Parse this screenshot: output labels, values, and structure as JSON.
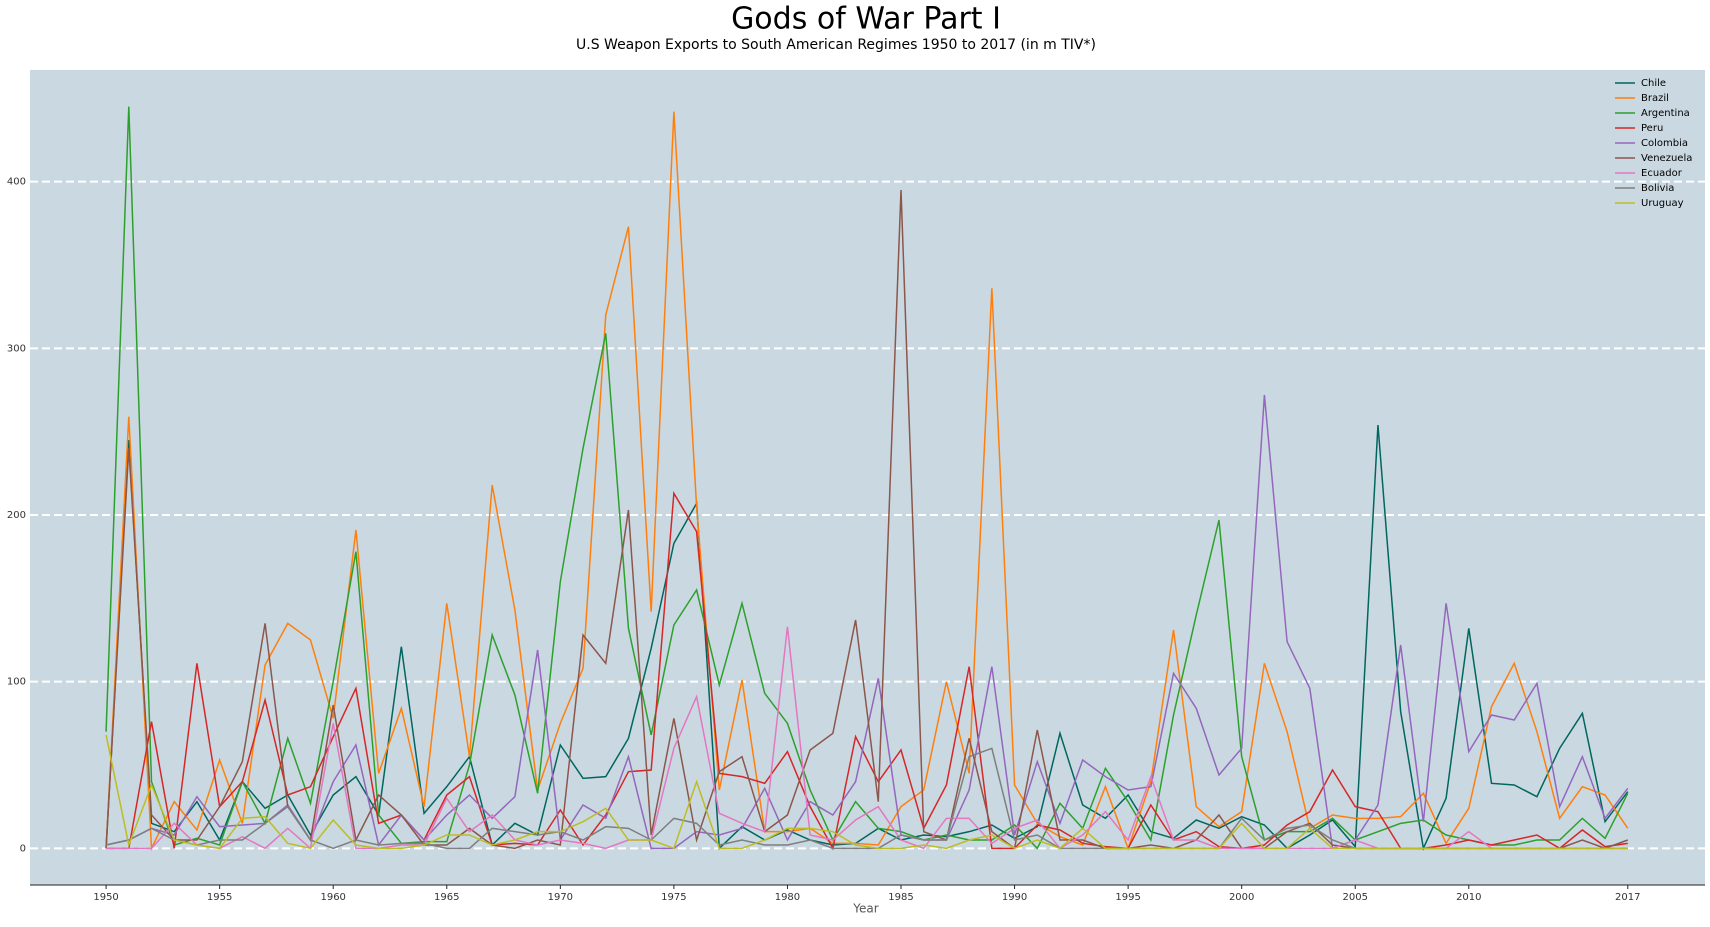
{
  "chart_data": {
    "type": "line",
    "title": "Gods of War Part I",
    "subtitle": "U.S Weapon Exports to South American Regimes 1950 to 2017 (in m TIV*)",
    "x_label": "Year",
    "x": [
      1950,
      1951,
      1952,
      1953,
      1954,
      1955,
      1956,
      1957,
      1958,
      1959,
      1960,
      1961,
      1962,
      1963,
      1964,
      1965,
      1966,
      1967,
      1968,
      1969,
      1970,
      1971,
      1972,
      1973,
      1974,
      1975,
      1976,
      1977,
      1978,
      1979,
      1980,
      1981,
      1982,
      1983,
      1984,
      1985,
      1986,
      1987,
      1988,
      1989,
      1990,
      1991,
      1992,
      1993,
      1994,
      1995,
      1996,
      1997,
      1998,
      1999,
      2000,
      2001,
      2002,
      2003,
      2004,
      2005,
      2006,
      2007,
      2008,
      2009,
      2010,
      2011,
      2012,
      2013,
      2014,
      2015,
      2016,
      2017
    ],
    "xlim": [
      1946.65,
      2020.4
    ],
    "xticks": [
      1950,
      1955,
      1960,
      1965,
      1970,
      1975,
      1980,
      1985,
      1990,
      1995,
      2000,
      2005,
      2010,
      2017
    ],
    "ylim": [
      -22,
      467
    ],
    "yticks": [
      0,
      100,
      200,
      300,
      400
    ],
    "grid": true,
    "legend": "upper right",
    "series": [
      {
        "name": "Chile",
        "color": "#00665e",
        "values": [
          0,
          245,
          15,
          10,
          28,
          5,
          40,
          24,
          32,
          8,
          32,
          43,
          20,
          121,
          21,
          37,
          55,
          2,
          15,
          8,
          62,
          42,
          43,
          66,
          120,
          183,
          207,
          0,
          13,
          5,
          11,
          5,
          2,
          3,
          12,
          5,
          8,
          7,
          10,
          14,
          6,
          13,
          69,
          26,
          18,
          32,
          10,
          6,
          17,
          12,
          19,
          14,
          0,
          8,
          17,
          1,
          254,
          82,
          0,
          30,
          132,
          39,
          38,
          31,
          60,
          81,
          16,
          34
        ]
      },
      {
        "name": "Brazil",
        "color": "#ff7f0e",
        "values": [
          0,
          259,
          0,
          28,
          11,
          53,
          15,
          110,
          135,
          125,
          78,
          191,
          45,
          84,
          25,
          147,
          55,
          218,
          143,
          35,
          75,
          108,
          320,
          373,
          142,
          442,
          205,
          35,
          101,
          10,
          10,
          12,
          3,
          3,
          2,
          25,
          35,
          100,
          45,
          336,
          38,
          15,
          7,
          2,
          37,
          0,
          40,
          131,
          25,
          13,
          22,
          111,
          70,
          12,
          20,
          18,
          18,
          19,
          33,
          3,
          24,
          85,
          111,
          70,
          18,
          37,
          32,
          12
        ]
      },
      {
        "name": "Argentina",
        "color": "#2ca02c",
        "values": [
          70,
          445,
          40,
          2,
          6,
          2,
          40,
          15,
          66,
          27,
          100,
          178,
          20,
          3,
          4,
          4,
          50,
          128,
          92,
          33,
          160,
          240,
          309,
          132,
          68,
          134,
          155,
          98,
          147,
          93,
          75,
          35,
          5,
          28,
          12,
          10,
          5,
          8,
          5,
          5,
          14,
          0,
          27,
          12,
          48,
          28,
          5,
          80,
          140,
          197,
          55,
          5,
          10,
          10,
          18,
          5,
          10,
          15,
          17,
          8,
          5,
          2,
          2,
          5,
          5,
          18,
          6,
          33
        ]
      },
      {
        "name": "Peru",
        "color": "#d62728",
        "values": [
          0,
          0,
          76,
          0,
          111,
          25,
          40,
          89,
          32,
          37,
          67,
          96,
          15,
          20,
          5,
          32,
          43,
          2,
          3,
          2,
          23,
          2,
          20,
          46,
          47,
          213,
          190,
          45,
          43,
          39,
          58,
          25,
          0,
          67,
          40,
          59,
          12,
          38,
          109,
          0,
          0,
          14,
          11,
          3,
          1,
          0,
          26,
          5,
          10,
          1,
          0,
          2,
          14,
          22,
          47,
          25,
          22,
          0,
          0,
          2,
          5,
          2,
          5,
          8,
          0,
          11,
          1,
          3
        ]
      },
      {
        "name": "Colombia",
        "color": "#9467bd",
        "values": [
          2,
          5,
          12,
          8,
          31,
          13,
          14,
          15,
          26,
          5,
          40,
          62,
          2,
          20,
          5,
          20,
          32,
          18,
          31,
          119,
          5,
          26,
          18,
          55,
          0,
          0,
          10,
          8,
          12,
          36,
          5,
          28,
          20,
          40,
          102,
          8,
          5,
          5,
          35,
          109,
          8,
          52,
          15,
          53,
          43,
          35,
          37,
          105,
          84,
          44,
          60,
          272,
          124,
          96,
          0,
          5,
          26,
          122,
          16,
          147,
          58,
          80,
          77,
          99,
          25,
          55,
          18,
          36
        ]
      },
      {
        "name": "Venezuela",
        "color": "#8c564b",
        "values": [
          0,
          240,
          20,
          5,
          5,
          25,
          52,
          135,
          25,
          5,
          86,
          5,
          32,
          20,
          2,
          2,
          12,
          2,
          0,
          5,
          2,
          128,
          111,
          203,
          8,
          78,
          5,
          46,
          55,
          10,
          20,
          59,
          69,
          137,
          28,
          395,
          10,
          5,
          66,
          10,
          0,
          71,
          5,
          5,
          0,
          0,
          2,
          0,
          5,
          20,
          0,
          0,
          10,
          15,
          2,
          0,
          0,
          0,
          0,
          0,
          0,
          0,
          0,
          0,
          0,
          5,
          0,
          5
        ]
      },
      {
        "name": "Ecuador",
        "color": "#e377c2",
        "values": [
          0,
          0,
          0,
          15,
          2,
          0,
          7,
          0,
          12,
          0,
          75,
          0,
          0,
          2,
          2,
          30,
          10,
          20,
          5,
          2,
          5,
          3,
          0,
          5,
          5,
          60,
          91,
          21,
          15,
          10,
          133,
          8,
          5,
          17,
          25,
          5,
          0,
          18,
          18,
          3,
          12,
          17,
          0,
          8,
          22,
          5,
          43,
          5,
          5,
          0,
          0,
          0,
          0,
          0,
          0,
          5,
          0,
          0,
          0,
          0,
          10,
          0,
          0,
          0,
          0,
          0,
          0,
          0
        ]
      },
      {
        "name": "Bolivia",
        "color": "#7f7f7f",
        "values": [
          2,
          5,
          12,
          5,
          2,
          5,
          5,
          15,
          25,
          5,
          0,
          5,
          2,
          3,
          3,
          0,
          0,
          12,
          10,
          8,
          10,
          5,
          13,
          12,
          5,
          18,
          15,
          2,
          5,
          2,
          2,
          5,
          0,
          0,
          0,
          8,
          5,
          5,
          55,
          60,
          5,
          8,
          0,
          0,
          0,
          0,
          0,
          0,
          0,
          0,
          18,
          5,
          12,
          14,
          5,
          0,
          0,
          0,
          0,
          0,
          0,
          0,
          0,
          0,
          0,
          0,
          0,
          0
        ]
      },
      {
        "name": "Uruguay",
        "color": "#bcbd22",
        "values": [
          68,
          2,
          38,
          5,
          2,
          0,
          18,
          19,
          3,
          0,
          17,
          2,
          0,
          0,
          2,
          8,
          8,
          2,
          5,
          10,
          10,
          16,
          24,
          5,
          5,
          0,
          40,
          0,
          0,
          5,
          12,
          12,
          10,
          2,
          0,
          0,
          2,
          0,
          5,
          8,
          0,
          5,
          0,
          12,
          0,
          0,
          0,
          0,
          0,
          0,
          15,
          0,
          0,
          12,
          0,
          0,
          0,
          0,
          0,
          0,
          0,
          0,
          0,
          0,
          0,
          0,
          0,
          0
        ]
      }
    ]
  }
}
